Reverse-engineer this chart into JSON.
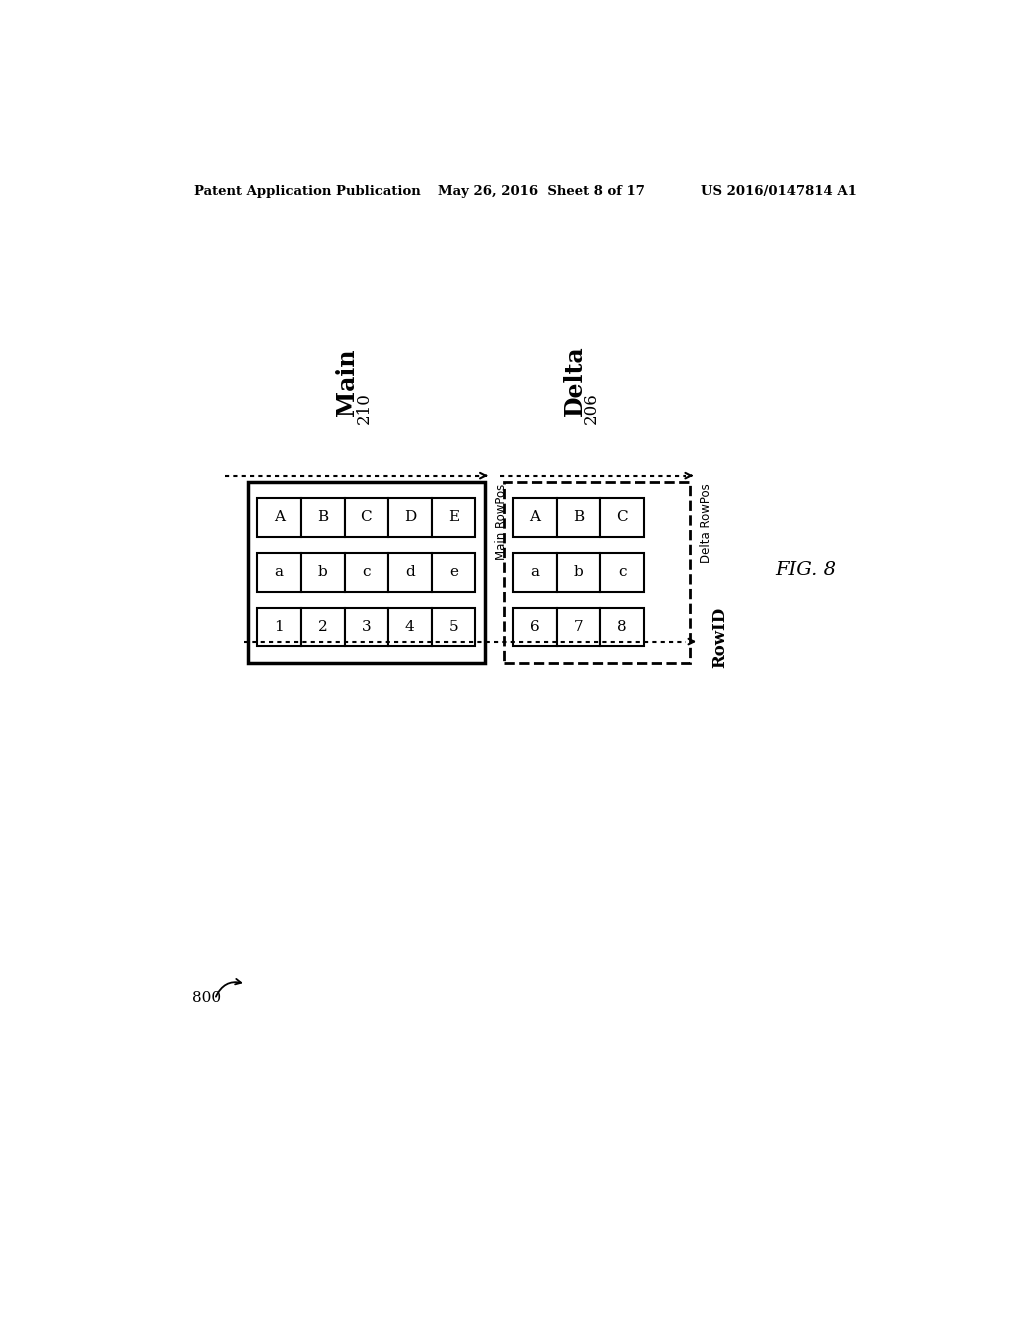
{
  "bg_color": "#ffffff",
  "header_left": "Patent Application Publication",
  "header_mid": "May 26, 2016  Sheet 8 of 17",
  "header_right": "US 2016/0147814 A1",
  "fig_label": "FIG. 8",
  "diagram_label": "800",
  "main_label": "Main",
  "main_number": "210",
  "delta_label": "Delta",
  "delta_number": "206",
  "main_rowpos_label": "Main RowPos",
  "delta_rowpos_label": "Delta RowPos",
  "rowid_label": "RowID",
  "main_row1": [
    "A",
    "B",
    "C",
    "D",
    "E"
  ],
  "main_row2": [
    "a",
    "b",
    "c",
    "d",
    "e"
  ],
  "main_row3": [
    "1",
    "2",
    "3",
    "4",
    "5"
  ],
  "delta_row1": [
    "A",
    "B",
    "C"
  ],
  "delta_row2": [
    "a",
    "b",
    "c"
  ],
  "delta_row3": [
    "6",
    "7",
    "8"
  ]
}
